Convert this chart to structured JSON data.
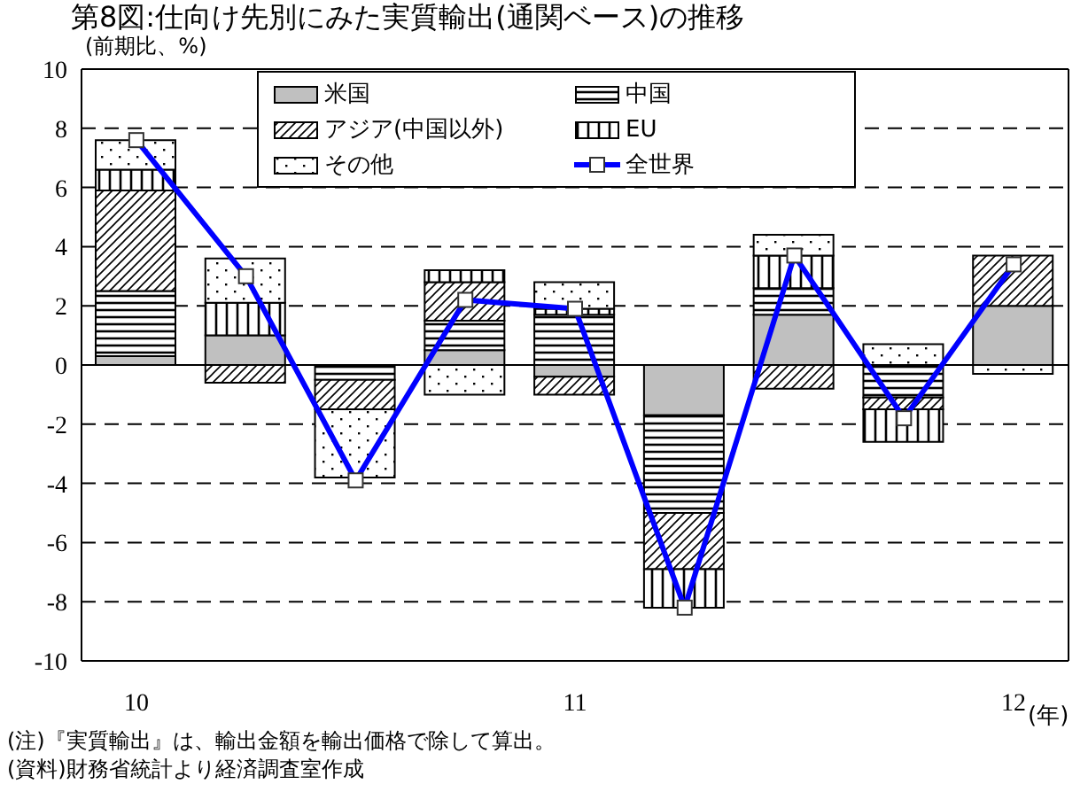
{
  "chart_data": {
    "type": "bar",
    "stacked": true,
    "title": "第8図:仕向け先別にみた実質輸出(通関ベース)の推移",
    "subtitle": "(前期比、%)",
    "xlabel": "(年)",
    "categories": [
      "10",
      null,
      null,
      null,
      "11",
      null,
      null,
      null,
      "12"
    ],
    "series": [
      {
        "name": "米国",
        "color": "#c0c0c0",
        "values": [
          0.3,
          1.0,
          0,
          0.5,
          -0.4,
          -1.7,
          1.7,
          0,
          2.0
        ]
      },
      {
        "name": "中国",
        "color": "#000000",
        "values": [
          2.2,
          0,
          -0.5,
          1.0,
          1.7,
          -3.3,
          0.9,
          -1.1,
          0
        ]
      },
      {
        "name": "アジア(中国以外)",
        "color": "#000000",
        "values": [
          3.4,
          -0.6,
          -1.0,
          1.3,
          -0.6,
          -1.9,
          -0.8,
          -0.4,
          1.7
        ]
      },
      {
        "name": "EU",
        "color": "#000000",
        "values": [
          0.7,
          1.1,
          0,
          0.4,
          0.2,
          -1.3,
          1.1,
          -1.1,
          0
        ]
      },
      {
        "name": "その他",
        "color": "#000000",
        "values": [
          1.0,
          1.5,
          -2.3,
          -1.0,
          0.9,
          0,
          0.7,
          0.7,
          -0.3
        ]
      },
      {
        "name": "全世界",
        "type": "line",
        "color": "#0000ff",
        "marker": "square",
        "values": [
          7.6,
          3.0,
          -3.9,
          2.2,
          1.9,
          -8.2,
          3.7,
          -1.8,
          3.4
        ]
      }
    ],
    "ylim": [
      -10,
      10
    ],
    "yticks": [
      -10,
      -8,
      -6,
      -4,
      -2,
      0,
      2,
      4,
      6,
      8,
      10
    ],
    "grid": "y",
    "legend": "top",
    "annotations": [
      "(注)『実質輸出』は、輸出金額を輸出価格で除して算出。",
      "(資料)財務省統計より経済調査室作成"
    ]
  }
}
